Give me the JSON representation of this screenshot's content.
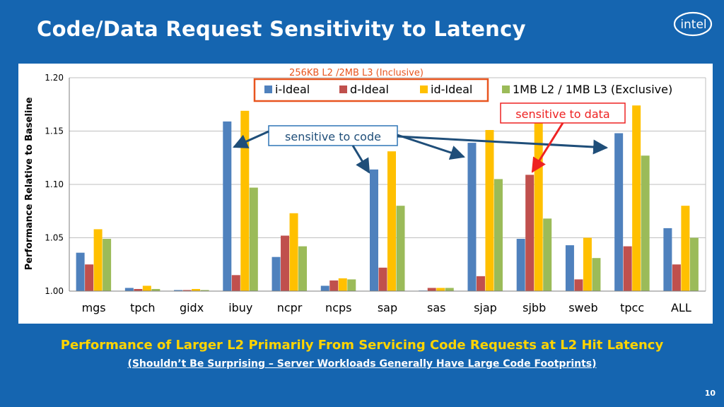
{
  "slide": {
    "title": "Code/Data Request Sensitivity to Latency",
    "logo_text": "intel",
    "footer_main": "Performance of Larger L2 Primarily From Servicing Code Requests at L2 Hit Latency",
    "footer_sub": "(Shouldn’t Be Surprising – Server Workloads Generally Have Large Code Footprints)",
    "page_number": "10"
  },
  "colors": {
    "background": "#1565b0",
    "i_ideal": "#4f81bd",
    "d_ideal": "#c0504d",
    "id_ideal": "#ffc000",
    "exclusive": "#9bbb59",
    "legend_box": "#e8551f",
    "callout_data": "#ee2222",
    "callout_arrow_code": "#1f4e79"
  },
  "annotations": {
    "legend_caption": "256KB L2 /2MB L3 (Inclusive)",
    "sensitive_to_code": "sensitive to code",
    "sensitive_to_data": "sensitive to data"
  },
  "chart_data": {
    "type": "bar",
    "title": "",
    "xlabel": "",
    "ylabel": "Performance Relative to Baseline",
    "ylim": [
      1.0,
      1.2
    ],
    "yticks": [
      "1.00",
      "1.05",
      "1.10",
      "1.15",
      "1.20"
    ],
    "grid": true,
    "categories": [
      "mgs",
      "tpch",
      "gidx",
      "ibuy",
      "ncpr",
      "ncps",
      "sap",
      "sas",
      "sjap",
      "sjbb",
      "sweb",
      "tpcc",
      "ALL"
    ],
    "series": [
      {
        "name": "i-Ideal",
        "values": [
          1.036,
          1.003,
          1.001,
          1.159,
          1.032,
          1.005,
          1.114,
          1.0,
          1.139,
          1.049,
          1.043,
          1.148,
          1.059
        ]
      },
      {
        "name": "d-Ideal",
        "values": [
          1.025,
          1.002,
          1.001,
          1.015,
          1.052,
          1.01,
          1.022,
          1.003,
          1.014,
          1.109,
          1.011,
          1.042,
          1.025
        ]
      },
      {
        "name": "id-Ideal",
        "values": [
          1.058,
          1.005,
          1.002,
          1.169,
          1.073,
          1.012,
          1.131,
          1.003,
          1.151,
          1.16,
          1.05,
          1.174,
          1.08
        ]
      },
      {
        "name": "1MB L2 / 1MB L3 (Exclusive)",
        "values": [
          1.049,
          1.002,
          1.001,
          1.097,
          1.042,
          1.011,
          1.08,
          1.003,
          1.105,
          1.068,
          1.031,
          1.127,
          1.05
        ]
      }
    ],
    "legend_position": "top-right"
  }
}
